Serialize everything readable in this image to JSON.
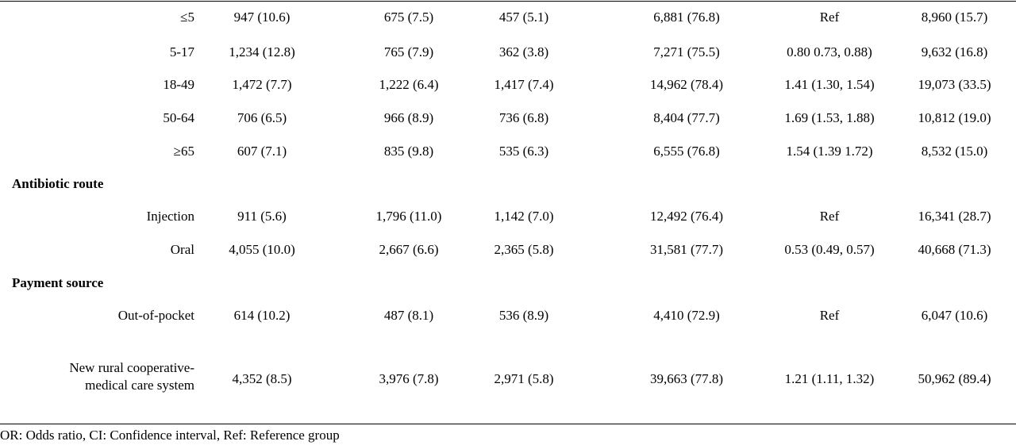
{
  "rows": [
    {
      "label": "≤5",
      "c1": "947 (10.6)",
      "c2": "675 (7.5)",
      "c3": "457 (5.1)",
      "c4": "6,881 (76.8)",
      "c5": "Ref",
      "c6": "8,960 (15.7)"
    },
    {
      "label": "5-17",
      "c1": "1,234 (12.8)",
      "c2": "765 (7.9)",
      "c3": "362 (3.8)",
      "c4": "7,271 (75.5)",
      "c5": "0.80 0.73, 0.88)",
      "c6": "9,632 (16.8)"
    },
    {
      "label": "18-49",
      "c1": "1,472 (7.7)",
      "c2": "1,222 (6.4)",
      "c3": "1,417 (7.4)",
      "c4": "14,962 (78.4)",
      "c5": "1.41 (1.30, 1.54)",
      "c6": "19,073 (33.5)"
    },
    {
      "label": "50-64",
      "c1": "706 (6.5)",
      "c2": "966 (8.9)",
      "c3": "736 (6.8)",
      "c4": "8,404 (77.7)",
      "c5": "1.69 (1.53, 1.88)",
      "c6": "10,812 (19.0)"
    },
    {
      "label": "≥65",
      "c1": "607 (7.1)",
      "c2": "835 (9.8)",
      "c3": "535 (6.3)",
      "c4": "6,555 (76.8)",
      "c5": "1.54 (1.39 1.72)",
      "c6": "8,532 (15.0)"
    },
    {
      "label": "Injection",
      "c1": "911 (5.6)",
      "c2": "1,796 (11.0)",
      "c3": "1,142 (7.0)",
      "c4": "12,492 (76.4)",
      "c5": "Ref",
      "c6": "16,341 (28.7)"
    },
    {
      "label": "Oral",
      "c1": "4,055 (10.0)",
      "c2": "2,667 (6.6)",
      "c3": "2,365 (5.8)",
      "c4": "31,581 (77.7)",
      "c5": "0.53 (0.49, 0.57)",
      "c6": "40,668 (71.3)"
    },
    {
      "label": "Out-of-pocket",
      "c1": "614 (10.2)",
      "c2": "487 (8.1)",
      "c3": "536 (8.9)",
      "c4": "4,410 (72.9)",
      "c5": "Ref",
      "c6": "6,047 (10.6)"
    },
    {
      "label_line1": "New rural cooperative-",
      "label_line2": "medical care system",
      "c1": "4,352 (8.5)",
      "c2": "3,976 (7.8)",
      "c3": "2,971 (5.8)",
      "c4": "39,663 (77.8)",
      "c5": "1.21 (1.11, 1.32)",
      "c6": "50,962 (89.4)"
    }
  ],
  "sections": {
    "antibiotic_route": "Antibiotic route",
    "payment_source": "Payment source"
  },
  "footnote": "OR: Odds ratio, CI: Confidence interval, Ref: Reference group"
}
